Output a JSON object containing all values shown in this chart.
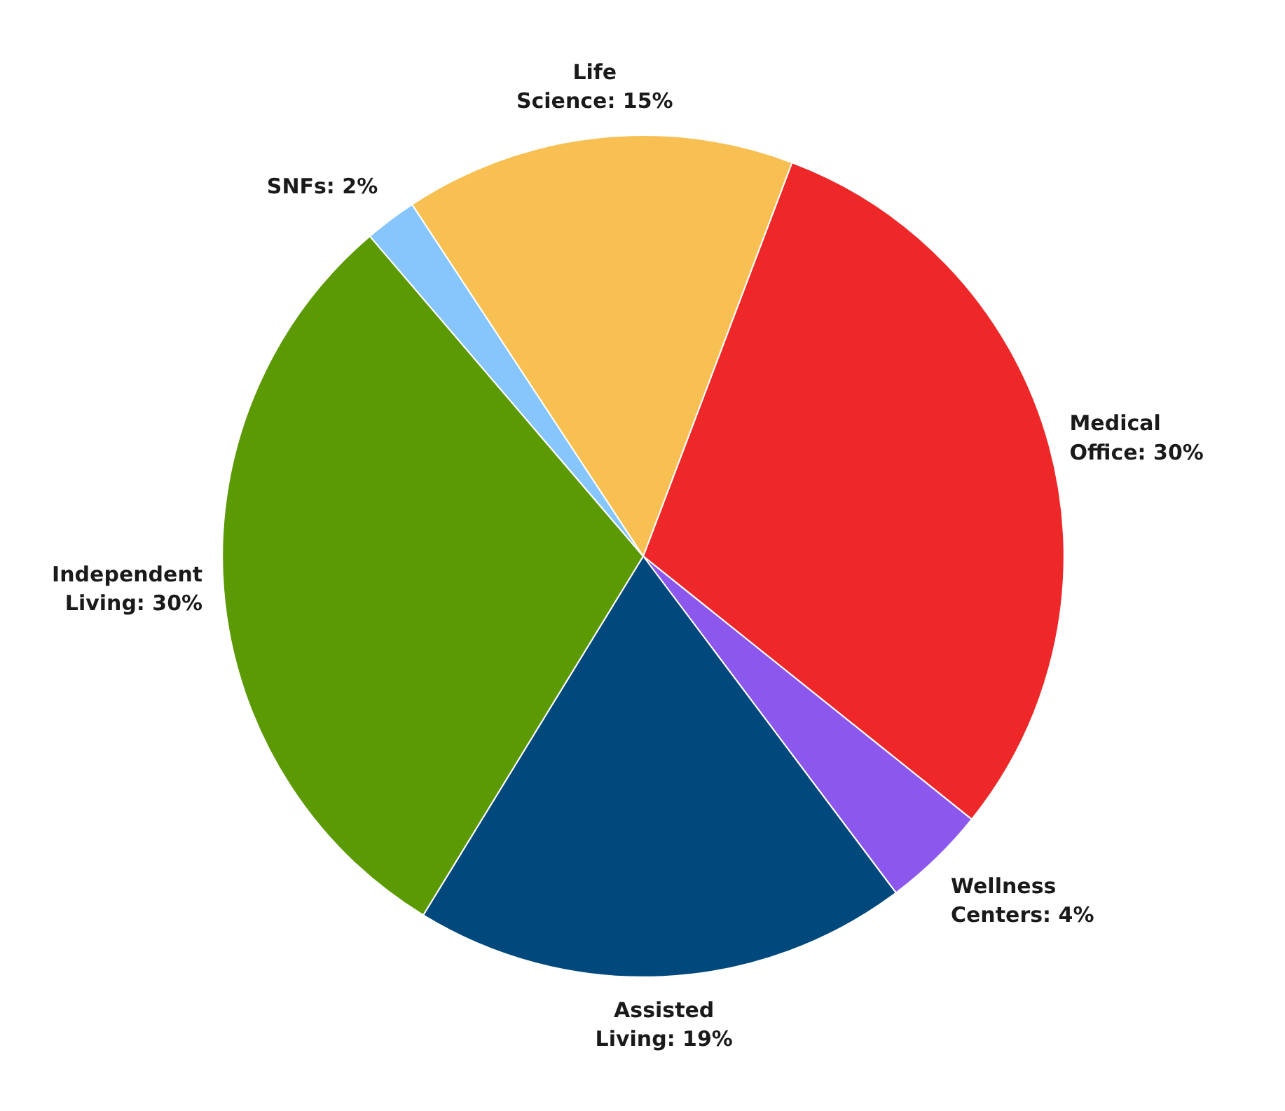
{
  "chart_data": {
    "type": "pie",
    "categories": [
      "Medical Office",
      "Wellness Centers",
      "Assisted Living",
      "Independent Living",
      "SNFs",
      "Life Science"
    ],
    "values": [
      30,
      4,
      19,
      30,
      2,
      15
    ],
    "value_labels": [
      "30%",
      "4%",
      "19%",
      "30%",
      "2%",
      "15%"
    ],
    "colors": [
      "#ee2828",
      "#8c57ed",
      "#01497c",
      "#5c9a05",
      "#86c6fc",
      "#f8c052"
    ],
    "legend": false
  }
}
